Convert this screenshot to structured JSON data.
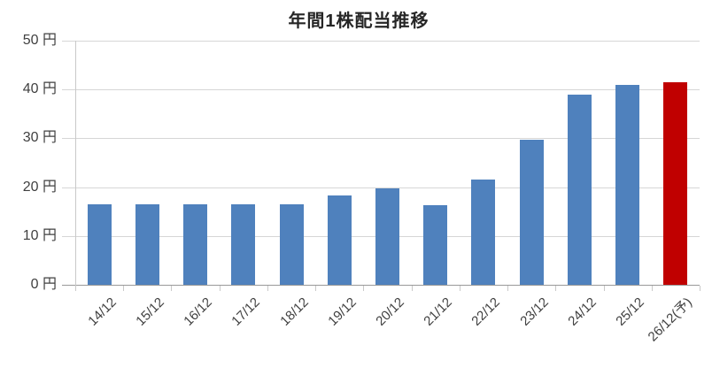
{
  "chart_data": {
    "type": "bar",
    "title": "年間1株配当推移",
    "categories": [
      "14/12",
      "15/12",
      "16/12",
      "17/12",
      "18/12",
      "19/12",
      "20/12",
      "21/12",
      "22/12",
      "23/12",
      "24/12",
      "25/12",
      "26/12(予)"
    ],
    "values": [
      16.5,
      16.5,
      16.5,
      16.5,
      16.5,
      18.25,
      19.75,
      16.25,
      21.5,
      29.75,
      39,
      41,
      41.5
    ],
    "unit": "円",
    "ylim": [
      0,
      50
    ],
    "ytick_step": 10,
    "ytick_labels": [
      "0 円",
      "10 円",
      "20 円",
      "30 円",
      "40 円",
      "50 円"
    ],
    "xlabel": "",
    "ylabel": "",
    "grid": "horizontal",
    "legend": "none",
    "forecast_index": 12,
    "colors": {
      "bar": "#4f81bd",
      "forecast_bar": "#c00000",
      "gridline": "#d6d6d6",
      "zero_axis_line": "#999999",
      "axis_tick": "#c9c9c9",
      "label_text": "#404040",
      "title_text": "#262626"
    }
  }
}
